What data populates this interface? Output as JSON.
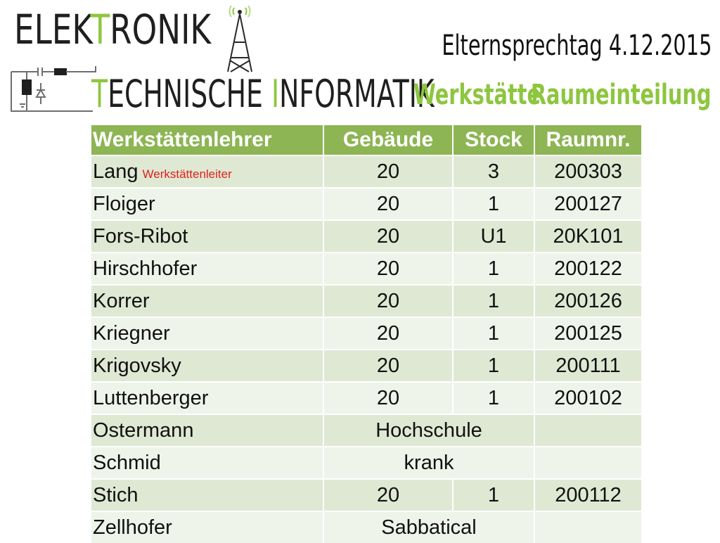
{
  "logo": {
    "line1_initial": "E",
    "line1_rest_a": "LEK",
    "line1_accent": "T",
    "line1_rest_b": "RONIK",
    "line2_initial": "T",
    "line2_rest_a": "ECHNISCHE ",
    "line2_accent": "I",
    "line2_rest_b": "NFORMATIK",
    "icon": "radio-tower-icon"
  },
  "header": {
    "event_title": "Elternsprechtag 4.12.2015",
    "section_left": "Werkstätte",
    "section_right": "Raumeinteilung"
  },
  "colors": {
    "accent_green": "#8dc63f",
    "header_bg": "#8db553",
    "row_dark": "#dfe8d3",
    "row_light": "#eff4ea",
    "note_red": "#e0201c"
  },
  "table": {
    "columns": [
      "Werkstättenlehrer",
      "Gebäude",
      "Stock",
      "Raumnr."
    ],
    "rows": [
      {
        "name": "Lang",
        "note": "Werkstättenleiter",
        "building": "20",
        "floor": "3",
        "room": "200303"
      },
      {
        "name": "Floiger",
        "building": "20",
        "floor": "1",
        "room": "200127"
      },
      {
        "name": "Fors-Ribot",
        "building": "20",
        "floor": "U1",
        "room": "20K101"
      },
      {
        "name": "Hirschhofer",
        "building": "20",
        "floor": "1",
        "room": "200122"
      },
      {
        "name": "Korrer",
        "building": "20",
        "floor": "1",
        "room": "200126"
      },
      {
        "name": "Kriegner",
        "building": "20",
        "floor": "1",
        "room": "200125"
      },
      {
        "name": "Krigovsky",
        "building": "20",
        "floor": "1",
        "room": "200111"
      },
      {
        "name": "Luttenberger",
        "building": "20",
        "floor": "1",
        "room": "200102"
      },
      {
        "name": "Ostermann",
        "status": "Hochschule",
        "room": ""
      },
      {
        "name": "Schmid",
        "status": "krank",
        "room": ""
      },
      {
        "name": "Stich",
        "building": "20",
        "floor": "1",
        "room": "200112"
      },
      {
        "name": "Zellhofer",
        "status": "Sabbatical",
        "room": ""
      }
    ]
  }
}
